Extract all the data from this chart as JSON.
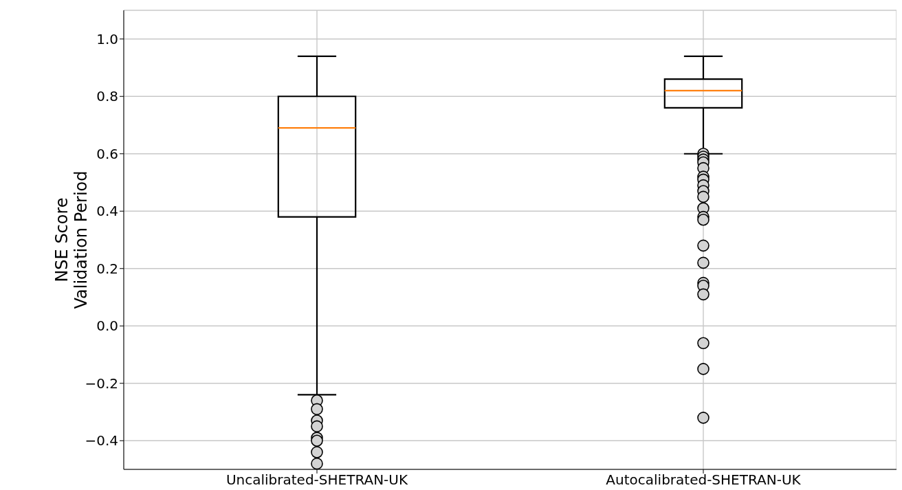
{
  "chart_data": {
    "type": "box",
    "ylabel": "NSE Score\nValidation Period",
    "categories": [
      "Uncalibrated-SHETRAN-UK",
      "Autocalibrated-SHETRAN-UK"
    ],
    "boxes": [
      {
        "low": -0.24,
        "q1": 0.38,
        "median": 0.69,
        "q3": 0.8,
        "high": 0.94,
        "outliers": [
          -0.26,
          -0.29,
          -0.33,
          -0.35,
          -0.39,
          -0.4,
          -0.44,
          -0.48
        ]
      },
      {
        "low": 0.6,
        "q1": 0.76,
        "median": 0.82,
        "q3": 0.86,
        "high": 0.94,
        "outliers": [
          0.6,
          0.59,
          0.58,
          0.57,
          0.55,
          0.52,
          0.51,
          0.49,
          0.47,
          0.45,
          0.41,
          0.38,
          0.37,
          0.28,
          0.22,
          0.15,
          0.14,
          0.11,
          -0.06,
          -0.15,
          -0.32
        ]
      }
    ],
    "ylim": [
      -0.5,
      1.1
    ],
    "yticks": [
      {
        "value": -0.4,
        "label": "−0.4"
      },
      {
        "value": -0.2,
        "label": "−0.2"
      },
      {
        "value": 0,
        "label": "0.0"
      },
      {
        "value": 0.2,
        "label": "0.2"
      },
      {
        "value": 0.4,
        "label": "0.4"
      },
      {
        "value": 0.6,
        "label": "0.6"
      },
      {
        "value": 0.8,
        "label": "0.8"
      },
      {
        "value": 1.0,
        "label": "1.0"
      }
    ],
    "grid": true,
    "color": "#000000"
  }
}
